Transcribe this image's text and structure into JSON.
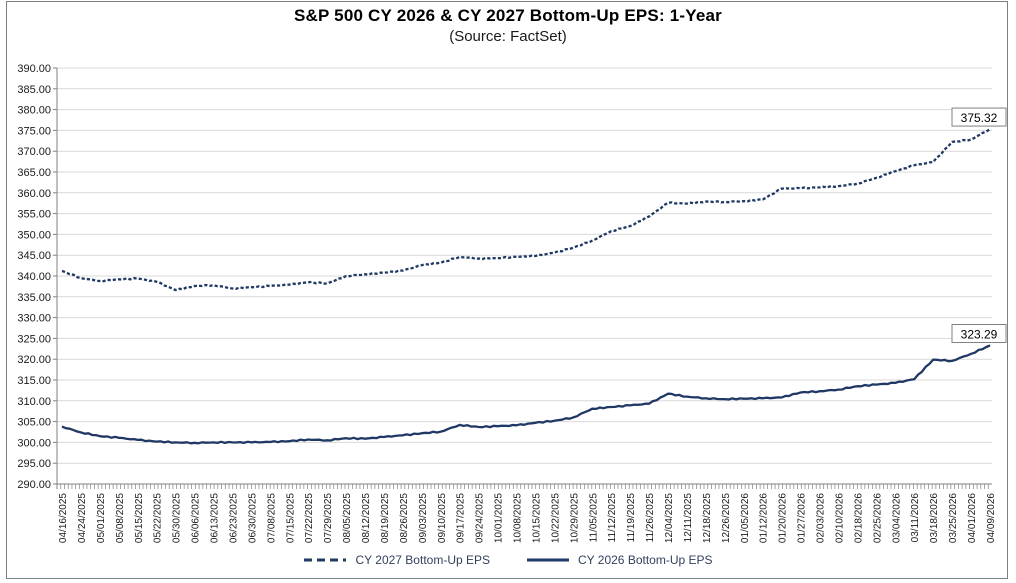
{
  "chart_data": {
    "type": "line",
    "title": "S&P 500 CY 2026 & CY 2027 Bottom-Up EPS: 1-Year",
    "subtitle": "(Source: FactSet)",
    "xlabel": "",
    "ylabel": "",
    "ylim": [
      290,
      390
    ],
    "ytick_step": 5,
    "grid": "horizontal",
    "legend_position": "bottom",
    "x_labels": [
      "04/16/2025",
      "04/24/2025",
      "05/01/2025",
      "05/08/2025",
      "05/15/2025",
      "05/22/2025",
      "05/30/2025",
      "06/06/2025",
      "06/13/2025",
      "06/23/2025",
      "06/30/2025",
      "07/08/2025",
      "07/15/2025",
      "07/22/2025",
      "07/29/2025",
      "08/05/2025",
      "08/12/2025",
      "08/19/2025",
      "08/26/2025",
      "09/03/2025",
      "09/10/2025",
      "09/17/2025",
      "09/24/2025",
      "10/01/2025",
      "10/08/2025",
      "10/15/2025",
      "10/22/2025",
      "10/29/2025",
      "11/05/2025",
      "11/12/2025",
      "11/19/2025",
      "11/26/2025",
      "12/04/2025",
      "12/11/2025",
      "12/18/2025",
      "12/26/2025",
      "01/05/2026",
      "01/12/2026",
      "01/20/2026",
      "01/27/2026",
      "02/03/2026",
      "02/10/2026",
      "02/18/2026",
      "02/25/2026",
      "03/04/2026",
      "03/11/2026",
      "03/18/2026",
      "03/25/2026",
      "04/01/2026",
      "04/09/2026"
    ],
    "series": [
      {
        "name": "CY 2027 Bottom-Up EPS",
        "style": "dashed",
        "color": "#1F3864",
        "end_label": "375.32",
        "values": [
          341.2,
          339.5,
          338.8,
          339.2,
          339.4,
          338.6,
          336.6,
          337.6,
          337.8,
          337.0,
          337.3,
          337.6,
          337.9,
          338.5,
          338.2,
          340.0,
          340.4,
          340.8,
          341.3,
          342.6,
          343.2,
          344.6,
          344.2,
          344.3,
          344.6,
          344.8,
          345.6,
          346.8,
          348.5,
          350.8,
          352.0,
          354.3,
          357.6,
          357.4,
          357.9,
          357.8,
          358.0,
          358.4,
          361.0,
          361.1,
          361.3,
          361.6,
          362.2,
          363.6,
          365.2,
          366.6,
          367.4,
          372.2,
          372.8,
          375.32
        ]
      },
      {
        "name": "CY 2026 Bottom-Up EPS",
        "style": "solid",
        "color": "#1F3864",
        "end_label": "323.29",
        "values": [
          303.8,
          302.4,
          301.5,
          301.1,
          300.6,
          300.2,
          300.0,
          299.9,
          300.0,
          300.0,
          300.0,
          300.1,
          300.3,
          300.7,
          300.5,
          301.0,
          300.9,
          301.3,
          301.7,
          302.2,
          302.6,
          304.2,
          303.7,
          303.9,
          304.1,
          304.7,
          305.2,
          306.0,
          308.1,
          308.5,
          308.9,
          309.3,
          311.7,
          311.0,
          310.6,
          310.4,
          310.5,
          310.6,
          310.8,
          312.0,
          312.3,
          312.7,
          313.5,
          313.9,
          314.3,
          315.2,
          319.9,
          319.6,
          321.3,
          323.29
        ]
      }
    ],
    "colors": {
      "line": "#1F3864",
      "gridline": "#D9D9D9",
      "axis": "#808080",
      "tick_text": "#1a1a1a",
      "end_label_bg": "#FFFFFF",
      "end_label_border": "#808080"
    }
  }
}
